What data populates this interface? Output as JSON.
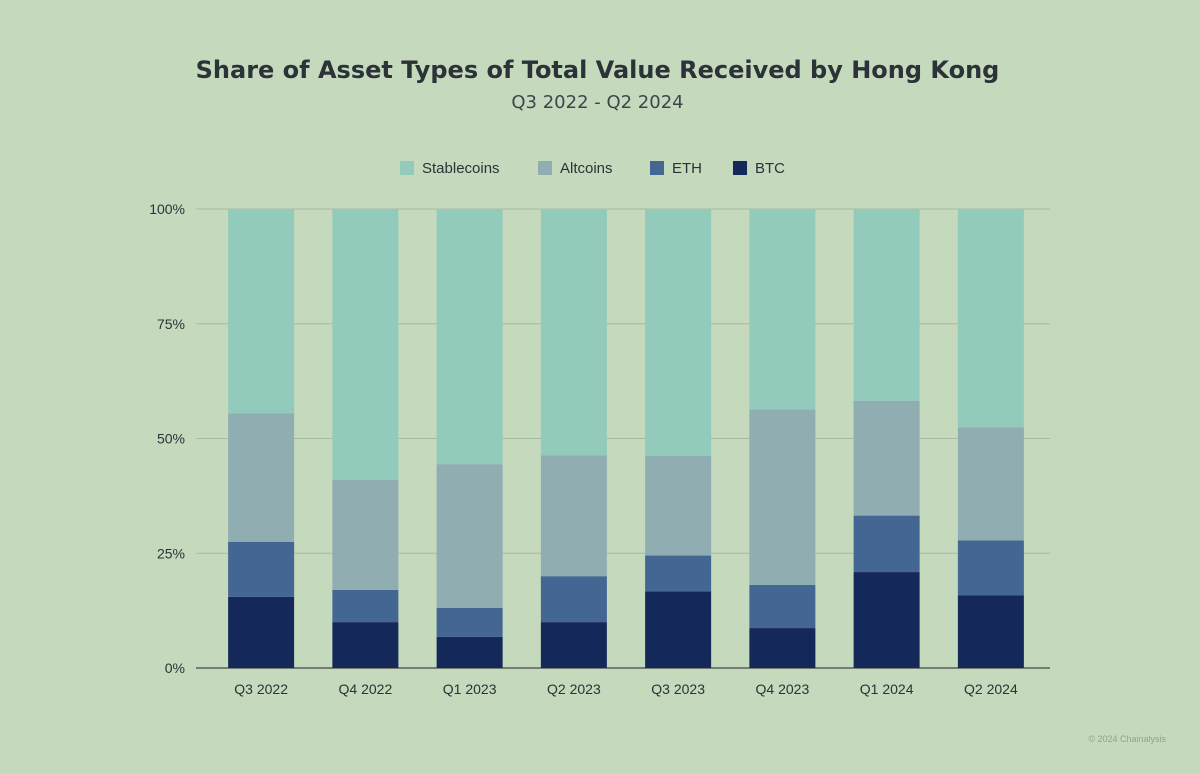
{
  "chart_data": {
    "type": "bar",
    "stacked": true,
    "title": "Share of Asset Types of Total Value Received by Hong Kong",
    "subtitle": "Q3 2022 - Q2 2024",
    "categories": [
      "Q3 2022",
      "Q4 2022",
      "Q1 2023",
      "Q2 2023",
      "Q3 2023",
      "Q4 2023",
      "Q1 2024",
      "Q2 2024"
    ],
    "series": [
      {
        "name": "BTC",
        "color": "#15285a",
        "values": [
          15.5,
          10.0,
          6.8,
          10.0,
          16.7,
          8.7,
          20.9,
          15.8
        ]
      },
      {
        "name": "ETH",
        "color": "#436693",
        "values": [
          12.0,
          7.0,
          6.3,
          10.0,
          7.8,
          9.4,
          12.3,
          12.0
        ]
      },
      {
        "name": "Altcoins",
        "color": "#90adb2",
        "values": [
          28.0,
          24.0,
          31.3,
          26.3,
          21.7,
          38.2,
          25.0,
          24.6
        ]
      },
      {
        "name": "Stablecoins",
        "color": "#92cabb",
        "values": [
          44.5,
          59.0,
          55.6,
          53.7,
          53.8,
          43.7,
          41.8,
          47.6
        ]
      }
    ],
    "legend_order": [
      "Stablecoins",
      "Altcoins",
      "ETH",
      "BTC"
    ],
    "legend_position": "top",
    "yticks": [
      "0%",
      "25%",
      "50%",
      "75%",
      "100%"
    ],
    "ylim": [
      0,
      100
    ],
    "grid": true
  },
  "credit": "© 2024 Chainalysis"
}
